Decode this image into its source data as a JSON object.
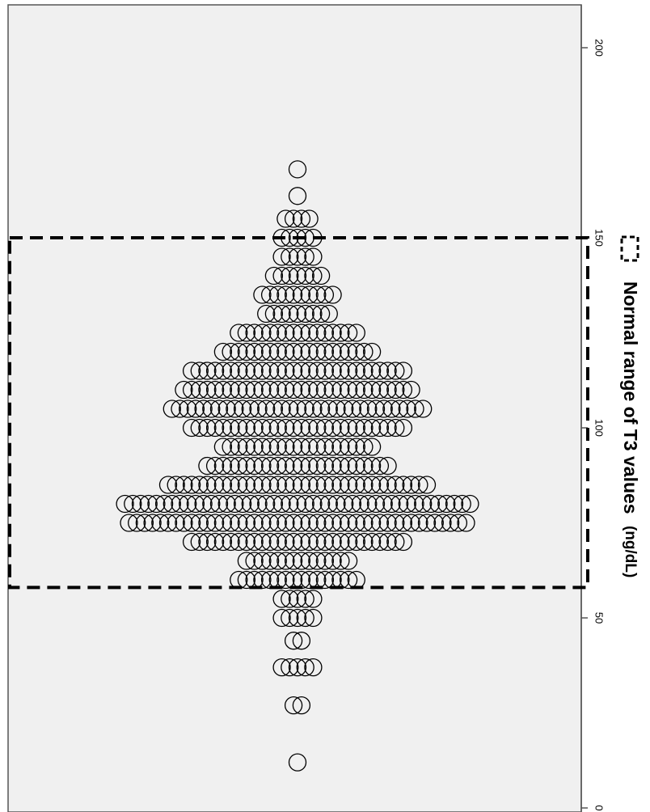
{
  "chart_data": {
    "type": "scatter",
    "subtype": "dot-plot",
    "orientation": "rotated-90",
    "axis_ticks": [
      "0",
      "50",
      "100",
      "150",
      "200"
    ],
    "axis_range": [
      0,
      210
    ],
    "reference_range": [
      58,
      150
    ],
    "legend": {
      "label": "Normal range of T3 values",
      "unit": "(ng/dL)"
    },
    "colors": {
      "panel": "#f0f0f0",
      "marker": "#000000",
      "reference": "#000000"
    },
    "bins": [
      {
        "value": 12,
        "count": 1
      },
      {
        "value": 27,
        "count": 2
      },
      {
        "value": 37,
        "count": 5
      },
      {
        "value": 44,
        "count": 2
      },
      {
        "value": 50,
        "count": 5
      },
      {
        "value": 55,
        "count": 5
      },
      {
        "value": 60,
        "count": 16
      },
      {
        "value": 65,
        "count": 14
      },
      {
        "value": 70,
        "count": 28
      },
      {
        "value": 75,
        "count": 44
      },
      {
        "value": 80,
        "count": 45
      },
      {
        "value": 85,
        "count": 34
      },
      {
        "value": 90,
        "count": 24
      },
      {
        "value": 95,
        "count": 20
      },
      {
        "value": 100,
        "count": 28
      },
      {
        "value": 105,
        "count": 33
      },
      {
        "value": 110,
        "count": 30
      },
      {
        "value": 115,
        "count": 28
      },
      {
        "value": 120,
        "count": 20
      },
      {
        "value": 125,
        "count": 16
      },
      {
        "value": 130,
        "count": 9
      },
      {
        "value": 135,
        "count": 10
      },
      {
        "value": 140,
        "count": 7
      },
      {
        "value": 145,
        "count": 5
      },
      {
        "value": 150,
        "count": 5
      },
      {
        "value": 155,
        "count": 4
      },
      {
        "value": 161,
        "count": 1
      },
      {
        "value": 168,
        "count": 1
      }
    ]
  }
}
